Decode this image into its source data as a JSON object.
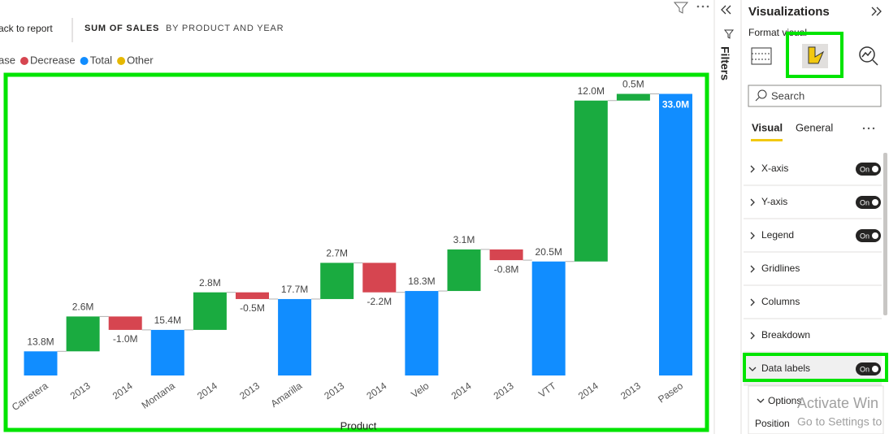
{
  "toolbar": {
    "back": "ack to report",
    "tabs": [
      "SUM OF SALES",
      "BY PRODUCT AND YEAR"
    ]
  },
  "chart_data": {
    "type": "waterfall",
    "x_label": "Product",
    "legend": [
      {
        "name": "ase",
        "color": "#1aab40"
      },
      {
        "name": "Decrease",
        "color": "#d64550"
      },
      {
        "name": "Total",
        "color": "#118dff"
      },
      {
        "name": "Other",
        "color": "#e6b800"
      }
    ],
    "categories": [
      "Carretera",
      "2013",
      "2014",
      "Montana",
      "2014",
      "2013",
      "Amarilla",
      "2013",
      "2014",
      "Velo",
      "2014",
      "2013",
      "VTT",
      "2014",
      "2013",
      "Paseo"
    ],
    "values": [
      13.8,
      2.6,
      -1.0,
      15.4,
      2.8,
      -0.5,
      17.7,
      2.7,
      -2.2,
      18.3,
      3.1,
      -0.8,
      20.5,
      12.0,
      0.5,
      33.0
    ],
    "value_labels": [
      "13.8M",
      "2.6M",
      "-1.0M",
      "15.4M",
      "2.8M",
      "-0.5M",
      "17.7M",
      "2.7M",
      "-2.2M",
      "18.3M",
      "3.1M",
      "-0.8M",
      "20.5M",
      "12.0M",
      "0.5M",
      "33.0M"
    ],
    "bar_colors": [
      "#118dff",
      "#1aab40",
      "#d64550",
      "#118dff",
      "#1aab40",
      "#d64550",
      "#118dff",
      "#1aab40",
      "#d64550",
      "#118dff",
      "#1aab40",
      "#d64550",
      "#118dff",
      "#1aab40",
      "#1aab40",
      "#118dff"
    ],
    "ylim": [
      12,
      34
    ]
  },
  "filters_pane": {
    "title": "Filters"
  },
  "visualizations_pane": {
    "title": "Visualizations",
    "subtitle": "Format visual",
    "search": "Search",
    "tabs": [
      "Visual",
      "General"
    ],
    "sections": [
      {
        "label": "X-axis",
        "toggle": "On"
      },
      {
        "label": "Y-axis",
        "toggle": "On"
      },
      {
        "label": "Legend",
        "toggle": "On"
      },
      {
        "label": "Gridlines"
      },
      {
        "label": "Columns"
      },
      {
        "label": "Breakdown"
      },
      {
        "label": "Data labels",
        "toggle": "On"
      }
    ],
    "options": "Options",
    "position": "Position"
  },
  "watermark": [
    "Activate Win",
    "Go to Settings to"
  ]
}
